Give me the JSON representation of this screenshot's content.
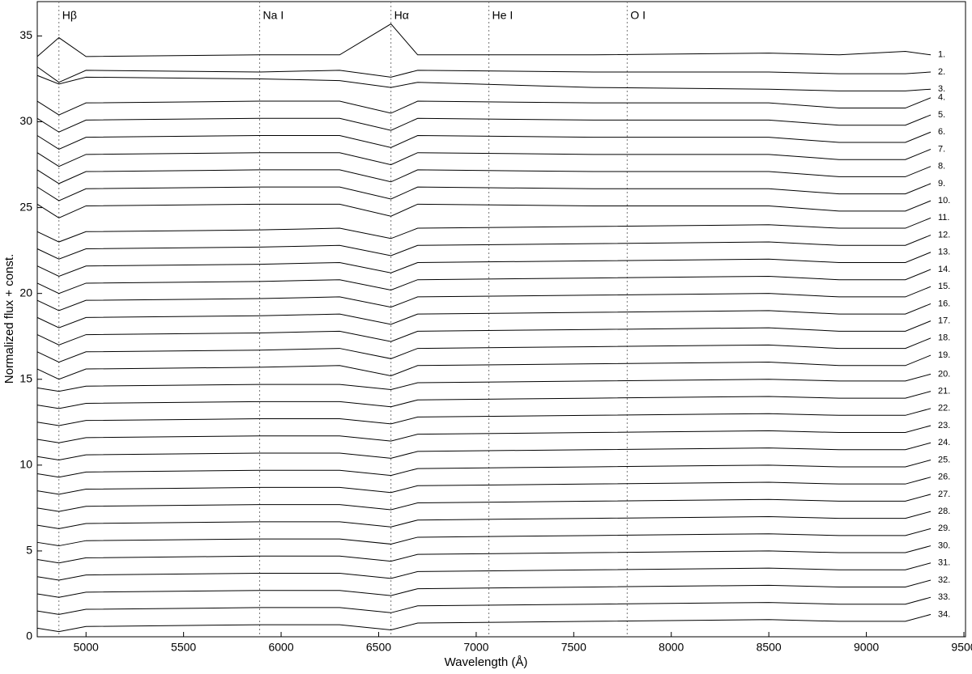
{
  "chart_data": {
    "type": "line",
    "xlabel": "Wavelength (Å)",
    "ylabel": "Normalized flux + const.",
    "color": "#000000",
    "xlim": [
      4750,
      9500
    ],
    "ylim": [
      0,
      37
    ],
    "xticks": [
      5000,
      5500,
      6000,
      6500,
      7000,
      7500,
      8000,
      8500,
      9000,
      9500
    ],
    "yticks": [
      0,
      5,
      10,
      15,
      20,
      25,
      30,
      35
    ],
    "lines": [
      {
        "label": "Hβ",
        "x": 4861
      },
      {
        "label": "Na I",
        "x": 5890
      },
      {
        "label": "Hα",
        "x": 6563
      },
      {
        "label": "He I",
        "x": 7065
      },
      {
        "label": "O I",
        "x": 7774
      }
    ],
    "x": [
      4750,
      4861,
      5000,
      5890,
      6300,
      6563,
      6700,
      7600,
      8500,
      8860,
      9200,
      9330
    ],
    "series": [
      {
        "name": "1.",
        "values": [
          33.8,
          34.9,
          33.8,
          33.9,
          33.9,
          35.7,
          33.9,
          33.9,
          34.0,
          33.9,
          34.1,
          33.9
        ]
      },
      {
        "name": "2.",
        "values": [
          33.2,
          32.3,
          33.0,
          32.9,
          33.0,
          32.6,
          33.0,
          32.9,
          32.9,
          32.8,
          32.8,
          32.9
        ]
      },
      {
        "name": "3.",
        "values": [
          32.7,
          32.2,
          32.6,
          32.5,
          32.4,
          32.0,
          32.3,
          32.0,
          31.9,
          31.8,
          31.8,
          31.9
        ]
      },
      {
        "name": "4.",
        "values": [
          31.2,
          30.4,
          31.1,
          31.2,
          31.2,
          30.5,
          31.2,
          31.1,
          31.1,
          30.8,
          30.8,
          31.4
        ]
      },
      {
        "name": "5.",
        "values": [
          30.2,
          29.4,
          30.1,
          30.2,
          30.2,
          29.5,
          30.2,
          30.1,
          30.1,
          29.8,
          29.8,
          30.4
        ]
      },
      {
        "name": "6.",
        "values": [
          29.2,
          28.4,
          29.1,
          29.2,
          29.2,
          28.5,
          29.2,
          29.1,
          29.1,
          28.8,
          28.8,
          29.4
        ]
      },
      {
        "name": "7.",
        "values": [
          28.2,
          27.4,
          28.1,
          28.2,
          28.2,
          27.5,
          28.2,
          28.1,
          28.1,
          27.8,
          27.8,
          28.4
        ]
      },
      {
        "name": "8.",
        "values": [
          27.2,
          26.4,
          27.1,
          27.2,
          27.2,
          26.5,
          27.2,
          27.1,
          27.1,
          26.8,
          26.8,
          27.4
        ]
      },
      {
        "name": "9.",
        "values": [
          26.2,
          25.4,
          26.1,
          26.2,
          26.2,
          25.5,
          26.2,
          26.1,
          26.1,
          25.8,
          25.8,
          26.4
        ]
      },
      {
        "name": "10.",
        "values": [
          25.2,
          24.4,
          25.1,
          25.2,
          25.2,
          24.5,
          25.2,
          25.1,
          25.1,
          24.8,
          24.8,
          25.4
        ]
      },
      {
        "name": "11.",
        "values": [
          23.6,
          23.0,
          23.6,
          23.7,
          23.8,
          23.2,
          23.8,
          23.9,
          24.0,
          23.8,
          23.8,
          24.4
        ]
      },
      {
        "name": "12.",
        "values": [
          22.6,
          22.0,
          22.6,
          22.7,
          22.8,
          22.2,
          22.8,
          22.9,
          23.0,
          22.8,
          22.8,
          23.4
        ]
      },
      {
        "name": "13.",
        "values": [
          21.6,
          21.0,
          21.6,
          21.7,
          21.8,
          21.2,
          21.8,
          21.9,
          22.0,
          21.8,
          21.8,
          22.4
        ]
      },
      {
        "name": "14.",
        "values": [
          20.6,
          20.0,
          20.6,
          20.7,
          20.8,
          20.2,
          20.8,
          20.9,
          21.0,
          20.8,
          20.8,
          21.4
        ]
      },
      {
        "name": "15.",
        "values": [
          19.6,
          19.0,
          19.6,
          19.7,
          19.8,
          19.2,
          19.8,
          19.9,
          20.0,
          19.8,
          19.8,
          20.4
        ]
      },
      {
        "name": "16.",
        "values": [
          18.6,
          18.0,
          18.6,
          18.7,
          18.8,
          18.2,
          18.8,
          18.9,
          19.0,
          18.8,
          18.8,
          19.4
        ]
      },
      {
        "name": "17.",
        "values": [
          17.6,
          17.0,
          17.6,
          17.7,
          17.8,
          17.2,
          17.8,
          17.9,
          18.0,
          17.8,
          17.8,
          18.4
        ]
      },
      {
        "name": "18.",
        "values": [
          16.6,
          16.0,
          16.6,
          16.7,
          16.8,
          16.2,
          16.8,
          16.9,
          17.0,
          16.8,
          16.8,
          17.4
        ]
      },
      {
        "name": "19.",
        "values": [
          15.6,
          15.0,
          15.6,
          15.7,
          15.8,
          15.2,
          15.8,
          15.9,
          16.0,
          15.8,
          15.8,
          16.4
        ]
      },
      {
        "name": "20.",
        "values": [
          14.5,
          14.3,
          14.6,
          14.7,
          14.7,
          14.4,
          14.8,
          14.9,
          15.0,
          14.9,
          14.9,
          15.3
        ]
      },
      {
        "name": "21.",
        "values": [
          13.5,
          13.3,
          13.6,
          13.7,
          13.7,
          13.4,
          13.8,
          13.9,
          14.0,
          13.9,
          13.9,
          14.3
        ]
      },
      {
        "name": "22.",
        "values": [
          12.5,
          12.3,
          12.6,
          12.7,
          12.7,
          12.4,
          12.8,
          12.9,
          13.0,
          12.9,
          12.9,
          13.3
        ]
      },
      {
        "name": "23.",
        "values": [
          11.5,
          11.3,
          11.6,
          11.7,
          11.7,
          11.4,
          11.8,
          11.9,
          12.0,
          11.9,
          11.9,
          12.3
        ]
      },
      {
        "name": "24.",
        "values": [
          10.5,
          10.3,
          10.6,
          10.7,
          10.7,
          10.4,
          10.8,
          10.9,
          11.0,
          10.9,
          10.9,
          11.3
        ]
      },
      {
        "name": "25.",
        "values": [
          9.5,
          9.3,
          9.6,
          9.7,
          9.7,
          9.4,
          9.8,
          9.9,
          10.0,
          9.9,
          9.9,
          10.3
        ]
      },
      {
        "name": "26.",
        "values": [
          8.5,
          8.3,
          8.6,
          8.7,
          8.7,
          8.4,
          8.8,
          8.9,
          9.0,
          8.9,
          8.9,
          9.3
        ]
      },
      {
        "name": "27.",
        "values": [
          7.5,
          7.3,
          7.6,
          7.7,
          7.7,
          7.4,
          7.8,
          7.9,
          8.0,
          7.9,
          7.9,
          8.3
        ]
      },
      {
        "name": "28.",
        "values": [
          6.5,
          6.3,
          6.6,
          6.7,
          6.7,
          6.4,
          6.8,
          6.9,
          7.0,
          6.9,
          6.9,
          7.3
        ]
      },
      {
        "name": "29.",
        "values": [
          5.5,
          5.3,
          5.6,
          5.7,
          5.7,
          5.4,
          5.8,
          5.9,
          6.0,
          5.9,
          5.9,
          6.3
        ]
      },
      {
        "name": "30.",
        "values": [
          4.5,
          4.3,
          4.6,
          4.7,
          4.7,
          4.4,
          4.8,
          4.9,
          5.0,
          4.9,
          4.9,
          5.3
        ]
      },
      {
        "name": "31.",
        "values": [
          3.5,
          3.3,
          3.6,
          3.7,
          3.7,
          3.4,
          3.8,
          3.9,
          4.0,
          3.9,
          3.9,
          4.3
        ]
      },
      {
        "name": "32.",
        "values": [
          2.5,
          2.3,
          2.6,
          2.7,
          2.7,
          2.4,
          2.8,
          2.9,
          3.0,
          2.9,
          2.9,
          3.3
        ]
      },
      {
        "name": "33.",
        "values": [
          1.5,
          1.3,
          1.6,
          1.7,
          1.7,
          1.4,
          1.8,
          1.9,
          2.0,
          1.9,
          1.9,
          2.3
        ]
      },
      {
        "name": "34.",
        "values": [
          0.5,
          0.3,
          0.6,
          0.7,
          0.7,
          0.4,
          0.8,
          0.9,
          1.0,
          0.9,
          0.9,
          1.3
        ]
      }
    ]
  }
}
